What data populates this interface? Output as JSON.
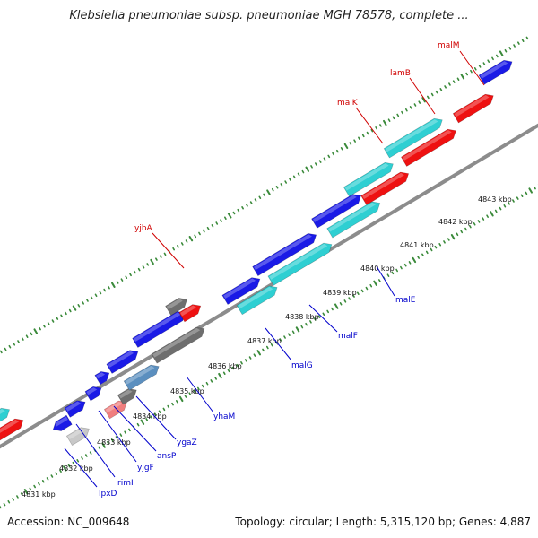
{
  "title": "Klebsiella pneumoniae subsp. pneumoniae MGH 78578, complete ...",
  "footer": {
    "accession": "Accession: NC_009648",
    "summary": "Topology: circular; Length: 5,315,120 bp; Genes: 4,887"
  },
  "colors": {
    "backbone": "#8c8c8c",
    "tick": "#3a8a3a",
    "label_top": "#d00000",
    "label_bottom": "#0000cc",
    "blue": "#1a1ae6",
    "cyan": "#2ecfd2",
    "red": "#ee1111",
    "gray": "#6e6e6e",
    "lightgray": "#c8c8c8",
    "steelblue": "#5b8fbf",
    "pink": "#f07e7e"
  },
  "ticks": [
    "4831 kbp",
    "4832 kbp",
    "4833 kbp",
    "4834 kbp",
    "4835 kbp",
    "4836 kbp",
    "4837 kbp",
    "4838 kbp",
    "4839 kbp",
    "4840 kbp",
    "4841 kbp",
    "4842 kbp",
    "4843 kbp"
  ],
  "top_labels": [
    "malM",
    "lamB",
    "malK",
    "yjbA"
  ],
  "bottom_labels": [
    "lpxD",
    "rimI",
    "yjgF",
    "ansP",
    "ygaZ",
    "yhaM",
    "malG",
    "malF",
    "malE"
  ]
}
